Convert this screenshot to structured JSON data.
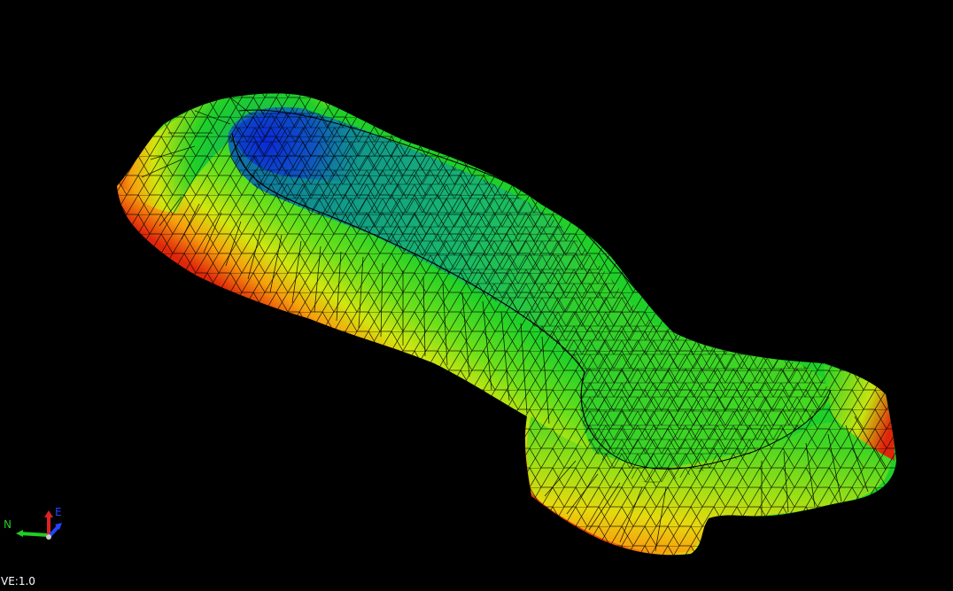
{
  "viewer": {
    "background_color": "#000000",
    "vertical_exaggeration_label": "VE:1.0",
    "axis_triad": {
      "north_label": "N",
      "east_label": "E",
      "north_color": "#22cc22",
      "east_color": "#2244ff",
      "up_color": "#dd2222"
    },
    "surface": {
      "render_mode": "shaded-wireframe",
      "colormap": [
        "#0a2ad8",
        "#0f7fa0",
        "#10a87a",
        "#1fd028",
        "#6ee11a",
        "#d2e60f",
        "#f7c60c",
        "#f57a0a",
        "#e0260a"
      ],
      "wireframe_color": "#000000"
    }
  }
}
